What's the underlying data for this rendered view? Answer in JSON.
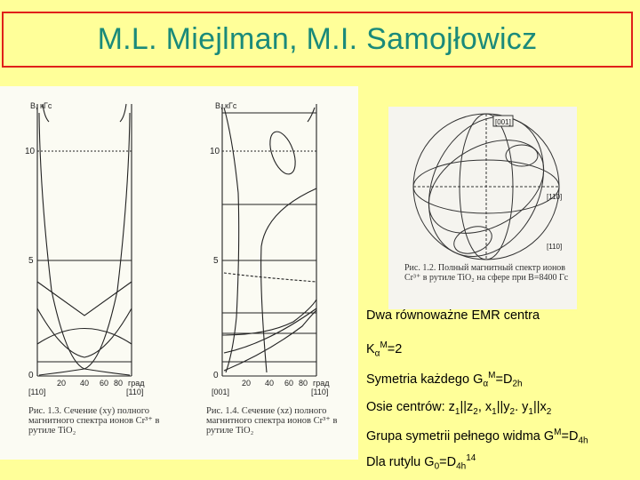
{
  "title": "M.L. Miejlman, M.I. Samojłowicz",
  "colors": {
    "background": "#ffff99",
    "title_border": "#e0201a",
    "title_text": "#1a8a7a"
  },
  "figure_left": {
    "axis_unit": "B, кГс",
    "ticks": [
      "10",
      "5",
      "0"
    ],
    "x_ticks": [
      "20",
      "40",
      "60",
      "80"
    ],
    "x_unit": "град",
    "x_start": "[110]",
    "x_end": "[110]",
    "caption": "Рис. 1.3. Сечение (xy) полного магнитного спектра ионов Cr³⁺ в рутиле TiO₂"
  },
  "figure_middle": {
    "axis_unit": "B, кГс",
    "ticks": [
      "10",
      "5",
      "0"
    ],
    "x_ticks": [
      "20",
      "40",
      "60",
      "80"
    ],
    "x_unit": "град",
    "x_start": "[001]",
    "x_end": "[110]",
    "caption": "Рис. 1.4. Сечение (xz) полного магнитного спектра ионов Cr³⁺ в рутиле TiO₂"
  },
  "figure_right": {
    "labels": [
      "[001]",
      "[110]",
      "[110]"
    ],
    "caption": "Рис. 1.2. Полный магнитный спектр ионов Cr³⁺ в рутиле TiO₂ на сфере при B=8400 Гс"
  },
  "text": {
    "line1": "Dwa równoważne EMR centra",
    "line2_main": "K",
    "line2_sub": "α",
    "line2_sup": "M",
    "line2_end": "=2",
    "line3_main": "Symetria każdego G",
    "line3_sub": "α",
    "line3_sup": "M",
    "line3_mid": "=D",
    "line3_sub2": "2h",
    "line4_main": "Osie centrów: z",
    "line4_s1": "1",
    "line4_a": "||z",
    "line4_s2": "2",
    "line4_b": ", x",
    "line4_s3": "1",
    "line4_c": "||y",
    "line4_s4": "2",
    "line4_d": ". y",
    "line4_s5": "1",
    "line4_e": "||x",
    "line4_s6": "2",
    "line5_main": "Grupa symetrii pełnego widma G",
    "line5_sup": "M",
    "line5_mid": "=D",
    "line5_sub": "4h",
    "line6_main": "Dla rutylu G",
    "line6_sub": "0",
    "line6_mid": "=D",
    "line6_sub2": "4h",
    "line6_sup": "14"
  }
}
